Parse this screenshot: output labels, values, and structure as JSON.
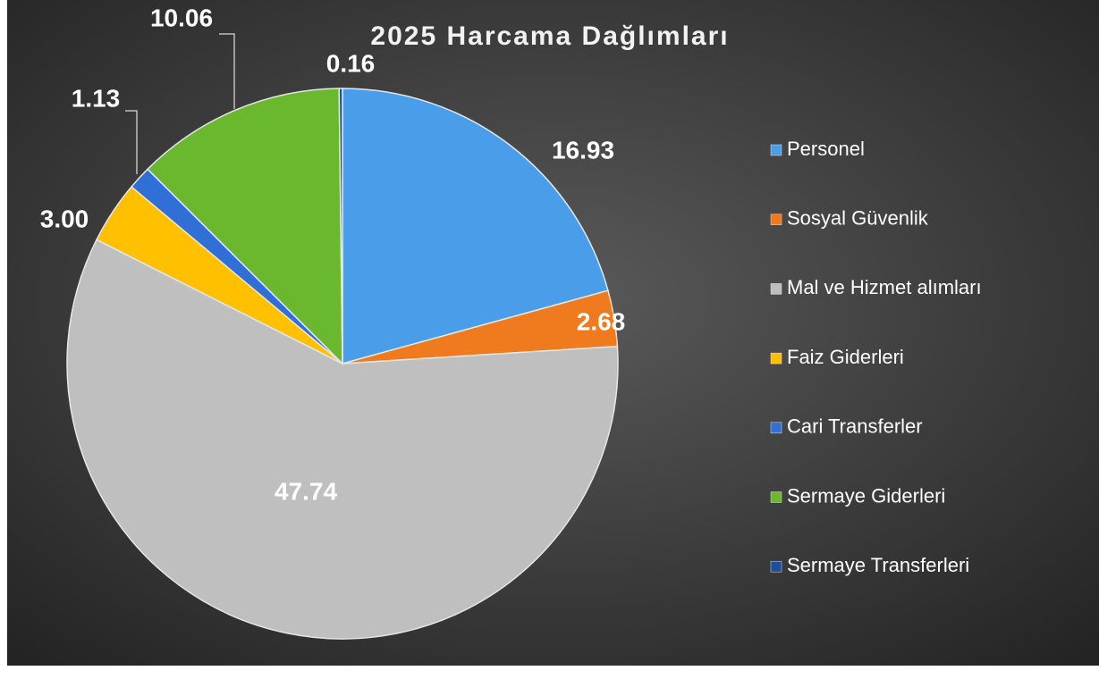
{
  "chart_data": {
    "type": "pie",
    "title": "2025 Harcama Dağlımları",
    "categories": [
      "Personel",
      "Sosyal Güvenlik",
      "Mal ve Hizmet alımları",
      "Faiz Giderleri",
      "Cari Transferler",
      "Sermaye Giderleri",
      "Sermaye Transferleri"
    ],
    "values": [
      16.93,
      2.68,
      47.74,
      3.0,
      1.13,
      10.06,
      0.16
    ],
    "value_labels": [
      "16.93",
      "2.68",
      "47.74",
      "3.00",
      "1.13",
      "10.06",
      "0.16"
    ],
    "colors": [
      "#4a9de8",
      "#f07a1e",
      "#bfbfbf",
      "#ffc000",
      "#2f6fd6",
      "#6ab82e",
      "#1f4e9c"
    ],
    "legend": "right"
  }
}
